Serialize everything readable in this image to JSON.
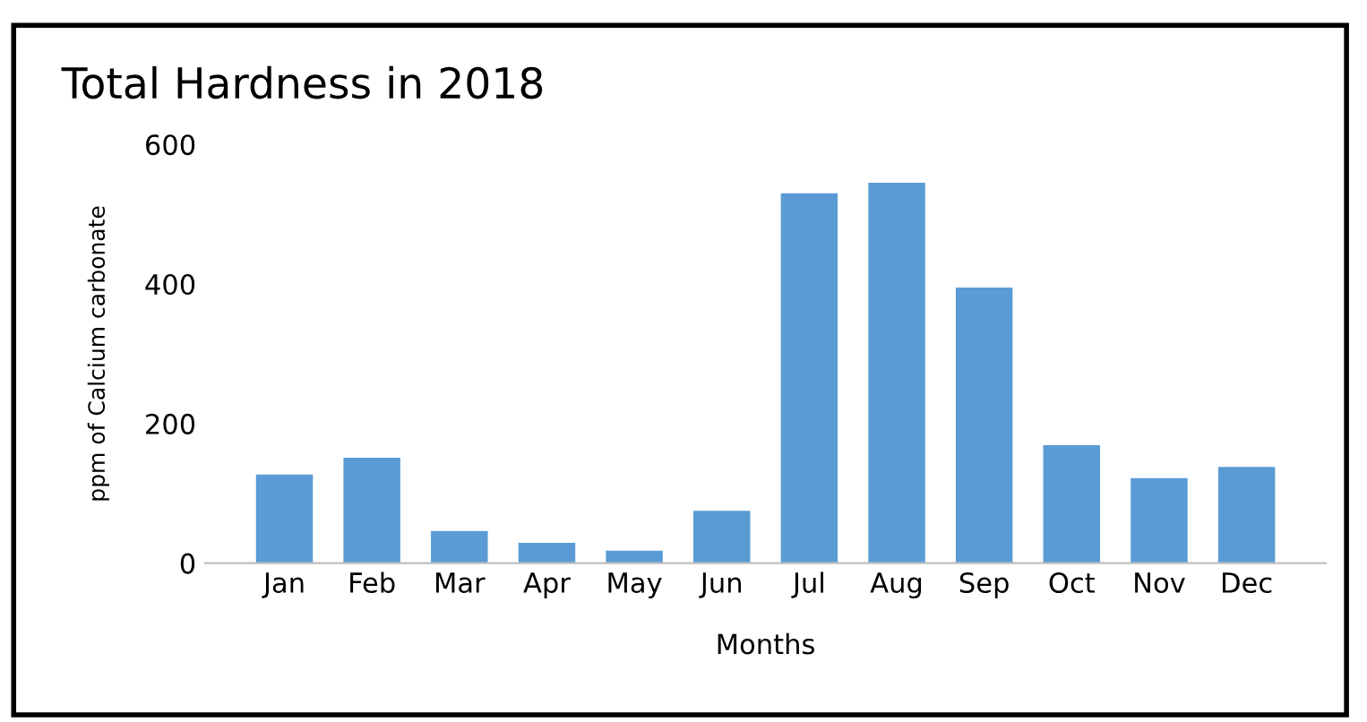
{
  "chart_data": {
    "type": "bar",
    "title": "Total Hardness in 2018",
    "xlabel": "Months",
    "ylabel": "ppm of Calcium carbonate",
    "categories": [
      "Jan",
      "Feb",
      "Mar",
      "Apr",
      "May",
      "Jun",
      "Jul",
      "Aug",
      "Sep",
      "Oct",
      "Nov",
      "Dec"
    ],
    "values": [
      127,
      151,
      46,
      29,
      18,
      75,
      530,
      545,
      395,
      169,
      122,
      138
    ],
    "color": "#5b9bd5",
    "ylim": [
      0,
      600
    ],
    "yticks": [
      0,
      200,
      400,
      600
    ],
    "grid": false,
    "legend": false
  }
}
